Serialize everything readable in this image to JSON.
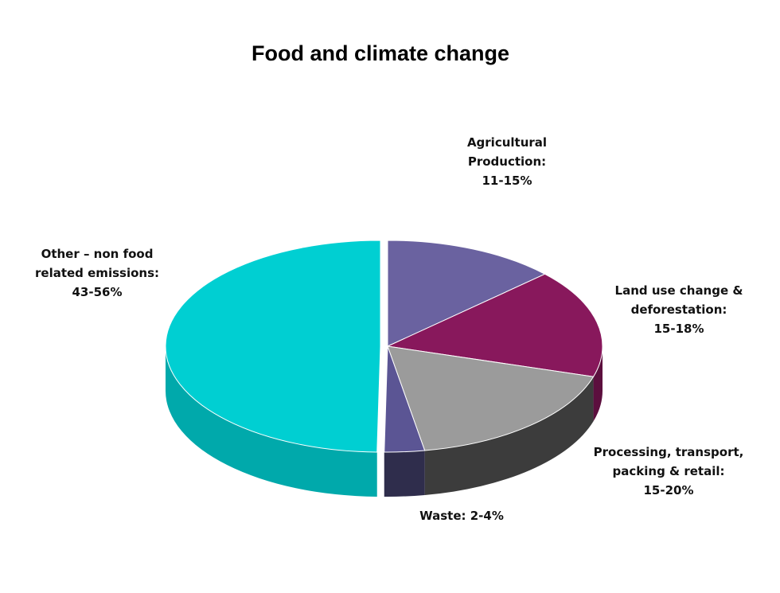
{
  "chart_data": {
    "type": "pie",
    "style": "3d-exploded",
    "title": "Food and climate change",
    "slices": [
      {
        "name": "Agricultural Production",
        "range": [
          11,
          15
        ],
        "value": 13,
        "color": "#6a62a0",
        "side_color": "#4a4478",
        "exploded": false,
        "label_lines": [
          "Agricultural",
          "Production:",
          "11-15%"
        ]
      },
      {
        "name": "Land use change & deforestation",
        "range": [
          15,
          18
        ],
        "value": 16.5,
        "color": "#88185c",
        "side_color": "#5c0f3e",
        "exploded": false,
        "label_lines": [
          "Land use change &",
          "deforestation:",
          "15-18%"
        ]
      },
      {
        "name": "Processing, transport, packing & retail",
        "range": [
          15,
          20
        ],
        "value": 17.5,
        "color": "#9b9b9b",
        "side_color": "#3c3c3c",
        "exploded": false,
        "label_lines": [
          "Processing, transport,",
          "packing & retail:",
          "15-20%"
        ]
      },
      {
        "name": "Waste",
        "range": [
          2,
          4
        ],
        "value": 3,
        "color": "#5b5594",
        "side_color": "#2f2d4c",
        "exploded": false,
        "label_lines": [
          "Waste: 2-4%"
        ]
      },
      {
        "name": "Other – non food related emissions",
        "range": [
          43,
          56
        ],
        "value": 49.5,
        "color": "#00cfd2",
        "side_color": "#00a9ab",
        "exploded": true,
        "label_lines": [
          "Other – non food",
          "related emissions:",
          "43-56%"
        ]
      }
    ]
  }
}
